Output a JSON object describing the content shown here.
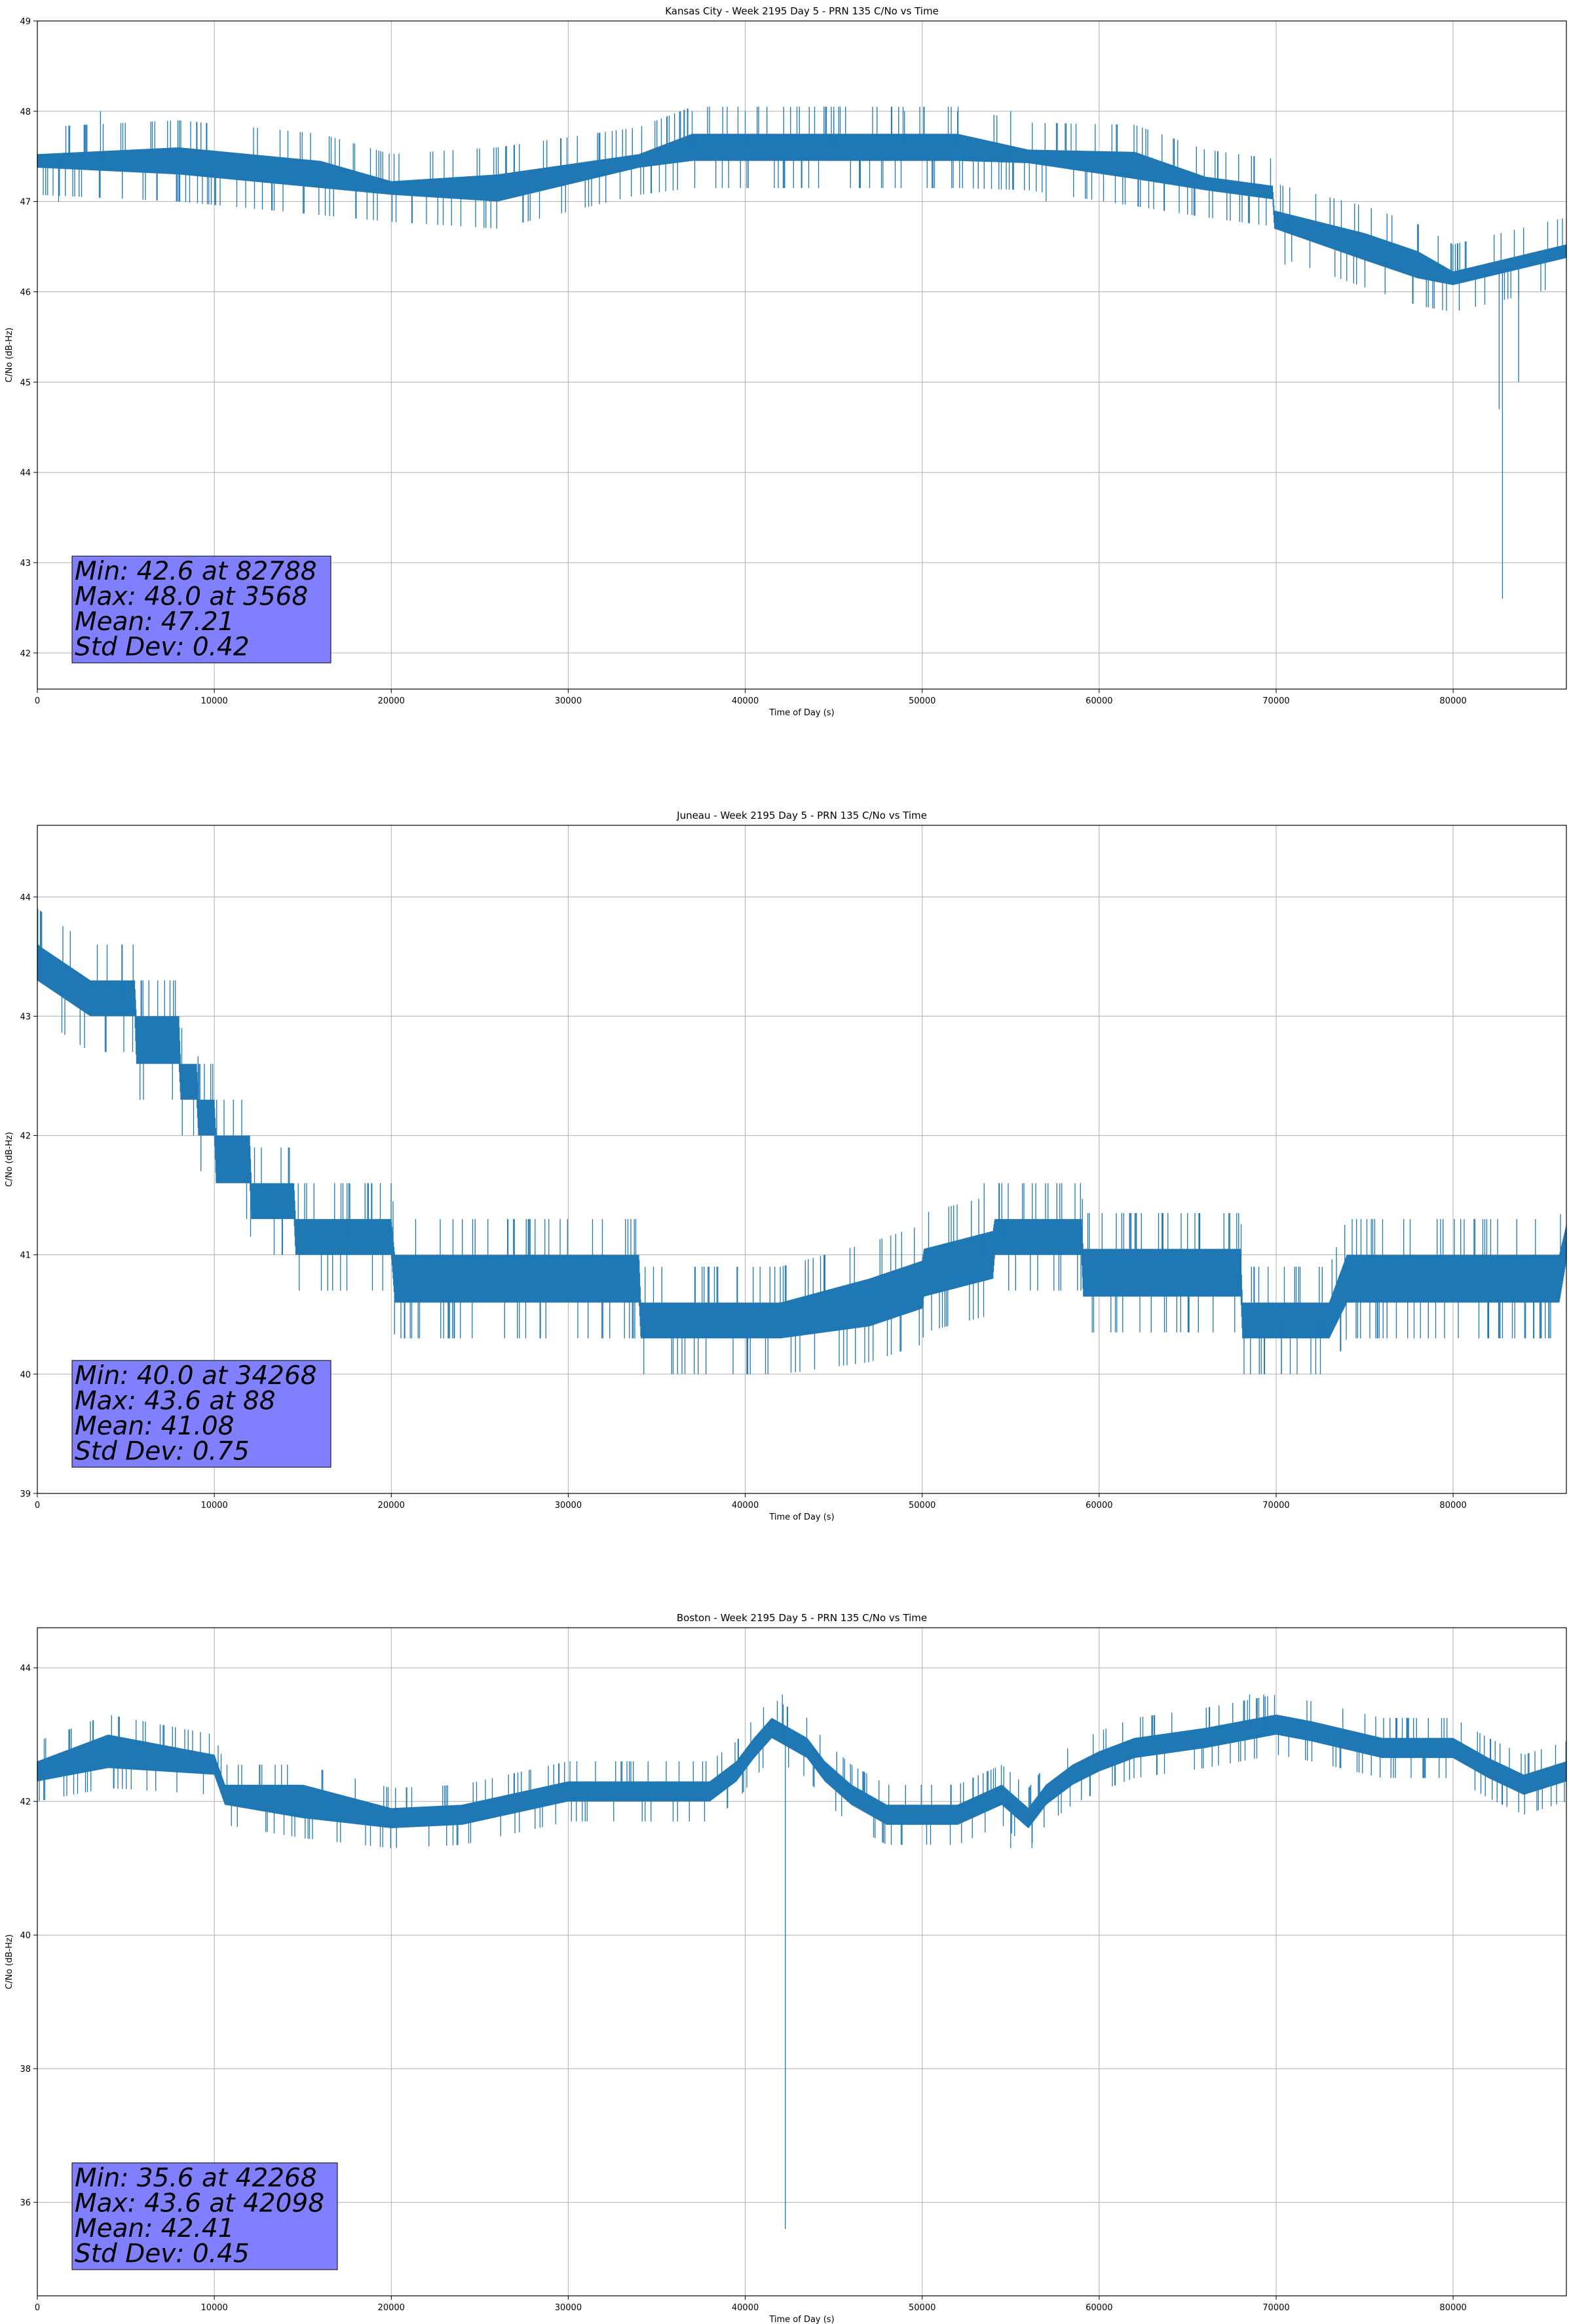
{
  "chart_data": [
    {
      "type": "line",
      "title": "Kansas City - Week 2195 Day 5 - PRN 135 C/No vs Time",
      "xlabel": "Time of Day (s)",
      "ylabel": "C/No (dB-Hz)",
      "xlim": [
        0,
        86400
      ],
      "ylim": [
        41.6,
        49
      ],
      "xticks": [
        0,
        10000,
        20000,
        30000,
        40000,
        50000,
        60000,
        70000,
        80000
      ],
      "yticks": [
        42,
        43,
        44,
        45,
        46,
        47,
        48,
        49
      ],
      "grid": true,
      "color": "#1f77b4",
      "stats": [
        "Min: 42.6 at 82788",
        "Max: 48.0 at 3568",
        "Mean: 47.21",
        "Std Dev: 0.42"
      ],
      "series": [
        {
          "x": [
            0,
            8000,
            16000,
            20000,
            26000,
            34000,
            37000,
            46000,
            52000,
            56000,
            62000,
            66000,
            69800,
            69900,
            75000,
            78000,
            80000,
            86400
          ],
          "y": [
            47.45,
            47.45,
            47.3,
            47.15,
            47.15,
            47.45,
            47.6,
            47.6,
            47.6,
            47.5,
            47.4,
            47.2,
            47.1,
            46.8,
            46.5,
            46.3,
            46.15,
            46.45
          ],
          "band": [
            0.15,
            0.3,
            0.3,
            0.15,
            0.3,
            0.15,
            0.3,
            0.3,
            0.3,
            0.15,
            0.3,
            0.15,
            0.15,
            0.2,
            0.3,
            0.3,
            0.15,
            0.15
          ],
          "spikes": [
            {
              "x": 3568,
              "y": 48.0
            },
            {
              "x": 37000,
              "y": 48.0
            },
            {
              "x": 40000,
              "y": 48.0
            },
            {
              "x": 45000,
              "y": 48.0
            },
            {
              "x": 49000,
              "y": 48.0
            },
            {
              "x": 52000,
              "y": 48.0
            },
            {
              "x": 55000,
              "y": 48.0
            },
            {
              "x": 1200,
              "y": 47.0
            },
            {
              "x": 57000,
              "y": 47.0
            },
            {
              "x": 70500,
              "y": 46.3
            },
            {
              "x": 82788,
              "y": 42.6
            },
            {
              "x": 82600,
              "y": 44.7
            },
            {
              "x": 83700,
              "y": 45.0
            }
          ]
        }
      ]
    },
    {
      "type": "line",
      "title": "Juneau - Week 2195 Day 5 - PRN 135 C/No vs Time",
      "xlabel": "Time of Day (s)",
      "ylabel": "C/No (dB-Hz)",
      "xlim": [
        0,
        86400
      ],
      "ylim": [
        39,
        44.6
      ],
      "xticks": [
        0,
        10000,
        20000,
        30000,
        40000,
        50000,
        60000,
        70000,
        80000
      ],
      "yticks": [
        39,
        40,
        41,
        42,
        43,
        44
      ],
      "grid": true,
      "color": "#1f77b4",
      "stats": [
        "Min: 40.0 at 34268",
        "Max: 43.6 at 88",
        "Mean: 41.08",
        "Std Dev: 0.75"
      ],
      "series": [
        {
          "x": [
            0,
            3000,
            5500,
            5600,
            8000,
            8100,
            9000,
            9100,
            10000,
            10100,
            12000,
            12100,
            14500,
            14600,
            20000,
            20200,
            34000,
            34100,
            42000,
            47000,
            50000,
            50100,
            54000,
            54100,
            59000,
            59100,
            68000,
            68100,
            73000,
            74000,
            86000,
            86400
          ],
          "y": [
            43.45,
            43.15,
            43.15,
            42.8,
            42.8,
            42.45,
            42.45,
            42.15,
            42.15,
            41.8,
            41.8,
            41.45,
            41.45,
            41.15,
            41.15,
            40.8,
            40.8,
            40.45,
            40.45,
            40.6,
            40.75,
            40.85,
            41.0,
            41.15,
            41.15,
            40.85,
            40.85,
            40.45,
            40.45,
            40.8,
            40.8,
            41.1
          ],
          "band": [
            0.3,
            0.3,
            0.3,
            0.4,
            0.4,
            0.3,
            0.3,
            0.3,
            0.3,
            0.4,
            0.4,
            0.3,
            0.3,
            0.3,
            0.3,
            0.4,
            0.4,
            0.3,
            0.3,
            0.4,
            0.4,
            0.4,
            0.4,
            0.3,
            0.3,
            0.4,
            0.4,
            0.3,
            0.3,
            0.4,
            0.4,
            0.3
          ],
          "spikes": [
            {
              "x": 88,
              "y": 43.6
            },
            {
              "x": 4800,
              "y": 43.6
            },
            {
              "x": 34268,
              "y": 40.0
            },
            {
              "x": 70300,
              "y": 40.0
            },
            {
              "x": 72500,
              "y": 40.0
            },
            {
              "x": 53500,
              "y": 41.6
            },
            {
              "x": 54500,
              "y": 41.6
            },
            {
              "x": 17500,
              "y": 41.6
            }
          ]
        }
      ]
    },
    {
      "type": "line",
      "title": "Boston - Week 2195 Day 5 - PRN 135 C/No vs Time",
      "xlabel": "Time of Day (s)",
      "ylabel": "C/No (dB-Hz)",
      "xlim": [
        0,
        86400
      ],
      "ylim": [
        34.6,
        44.6
      ],
      "xticks": [
        0,
        10000,
        20000,
        30000,
        40000,
        50000,
        60000,
        70000,
        80000
      ],
      "yticks": [
        36,
        38,
        40,
        42,
        44
      ],
      "grid": true,
      "color": "#1f77b4",
      "stats": [
        "Min: 35.6 at 42268",
        "Max: 43.6 at 42098",
        "Mean: 42.41",
        "Std Dev: 0.45"
      ],
      "series": [
        {
          "x": [
            0,
            4000,
            10000,
            10600,
            15000,
            20000,
            24000,
            30000,
            38000,
            39500,
            40500,
            41500,
            43500,
            44500,
            46000,
            48000,
            52000,
            54500,
            56000,
            57000,
            58500,
            60000,
            62000,
            66000,
            70000,
            72000,
            76000,
            80000,
            82000,
            84000,
            86400
          ],
          "y": [
            42.45,
            42.75,
            42.55,
            42.1,
            42.0,
            41.75,
            41.8,
            42.15,
            42.15,
            42.45,
            42.8,
            43.1,
            42.8,
            42.45,
            42.1,
            41.8,
            41.8,
            42.1,
            41.75,
            42.1,
            42.4,
            42.6,
            42.8,
            42.95,
            43.15,
            43.05,
            42.8,
            42.8,
            42.5,
            42.25,
            42.45
          ],
          "band": [
            0.3,
            0.5,
            0.3,
            0.3,
            0.5,
            0.3,
            0.3,
            0.3,
            0.3,
            0.3,
            0.3,
            0.3,
            0.3,
            0.3,
            0.3,
            0.3,
            0.3,
            0.3,
            0.3,
            0.3,
            0.3,
            0.3,
            0.3,
            0.3,
            0.3,
            0.3,
            0.3,
            0.3,
            0.3,
            0.3,
            0.3
          ],
          "spikes": [
            {
              "x": 42098,
              "y": 43.6
            },
            {
              "x": 68500,
              "y": 43.6
            },
            {
              "x": 69300,
              "y": 43.6
            },
            {
              "x": 42268,
              "y": 35.6
            },
            {
              "x": 55000,
              "y": 41.3
            },
            {
              "x": 56200,
              "y": 41.3
            }
          ]
        }
      ]
    }
  ]
}
